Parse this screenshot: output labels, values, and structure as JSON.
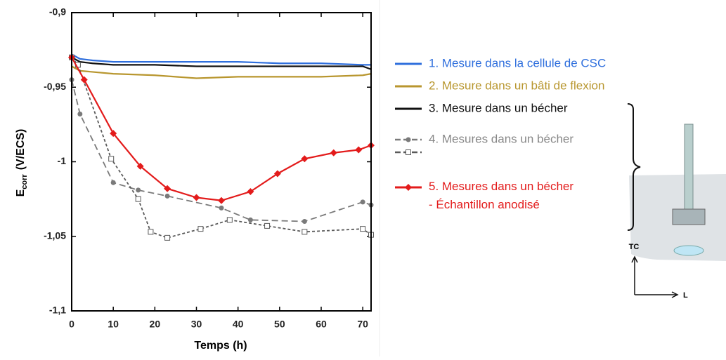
{
  "chart_data": {
    "type": "line",
    "xlabel": "Temps (h)",
    "ylabel": {
      "main": "E",
      "sub": "corr",
      "unit": "(V/ECS)"
    },
    "xlim": [
      0,
      72
    ],
    "ylim": [
      -1.1,
      -0.9
    ],
    "xticks": [
      0,
      10,
      20,
      30,
      40,
      50,
      60,
      70
    ],
    "yticks": [
      {
        "value": -1.1,
        "label": "-1,1"
      },
      {
        "value": -1.05,
        "label": "-1,05"
      },
      -1,
      {
        "value": -0.95,
        "label": "-0,95"
      },
      {
        "value": -0.9,
        "label": "-0,9"
      }
    ],
    "series": [
      {
        "name": "1. Mesure dans la cellule  de CSC",
        "color": "#2f6fdd",
        "dash": "solid",
        "x": [
          0,
          2,
          5,
          10,
          20,
          30,
          40,
          50,
          60,
          70,
          72
        ],
        "values": [
          -0.928,
          -0.931,
          -0.932,
          -0.933,
          -0.933,
          -0.933,
          -0.933,
          -0.934,
          -0.934,
          -0.935,
          -0.935
        ]
      },
      {
        "name": "2. Mesure dans un bâti de flexion",
        "color": "#b8962e",
        "dash": "solid",
        "x": [
          0,
          2,
          10,
          20,
          30,
          40,
          50,
          60,
          70,
          72
        ],
        "values": [
          -0.936,
          -0.939,
          -0.941,
          -0.942,
          -0.944,
          -0.943,
          -0.943,
          -0.943,
          -0.942,
          -0.941
        ]
      },
      {
        "name": "3. Mesure dans un bécher",
        "color": "#111111",
        "dash": "solid",
        "x": [
          0,
          2,
          5,
          10,
          20,
          30,
          40,
          50,
          60,
          70,
          72
        ],
        "values": [
          -0.93,
          -0.933,
          -0.934,
          -0.935,
          -0.935,
          -0.936,
          -0.936,
          -0.936,
          -0.936,
          -0.936,
          -0.938
        ]
      },
      {
        "name": "4. Mesures dans un bécher",
        "color": "#7a7a7a",
        "dash": "dashed",
        "marker": "circle",
        "x": [
          0,
          2,
          10,
          16,
          23,
          36,
          43,
          56,
          70,
          72
        ],
        "values": [
          -0.945,
          -0.968,
          -1.014,
          -1.019,
          -1.023,
          -1.031,
          -1.039,
          -1.04,
          -1.027,
          -1.029
        ]
      },
      {
        "color": "#5a5a5a",
        "dash": "dotted",
        "marker": "square",
        "x": [
          0,
          1.5,
          9.5,
          16,
          19,
          23,
          31,
          38,
          47,
          56,
          70,
          72
        ],
        "values": [
          -0.93,
          -0.935,
          -0.998,
          -1.025,
          -1.047,
          -1.051,
          -1.045,
          -1.039,
          -1.043,
          -1.047,
          -1.045,
          -1.049
        ]
      },
      {
        "name": "5. Mesures dans un bécher\n- Échantillon anodisé",
        "color": "#e31b1b",
        "dash": "solid",
        "marker": "diamond",
        "x": [
          0,
          3,
          10,
          16.5,
          23,
          30,
          36,
          43,
          49.5,
          56,
          63,
          69,
          72
        ],
        "values": [
          -0.93,
          -0.945,
          -0.981,
          -1.003,
          -1.018,
          -1.024,
          -1.026,
          -1.02,
          -1.008,
          -0.998,
          -0.994,
          -0.992,
          -0.989
        ]
      }
    ]
  },
  "diagram": {
    "labels": [
      "TC",
      "L"
    ]
  }
}
